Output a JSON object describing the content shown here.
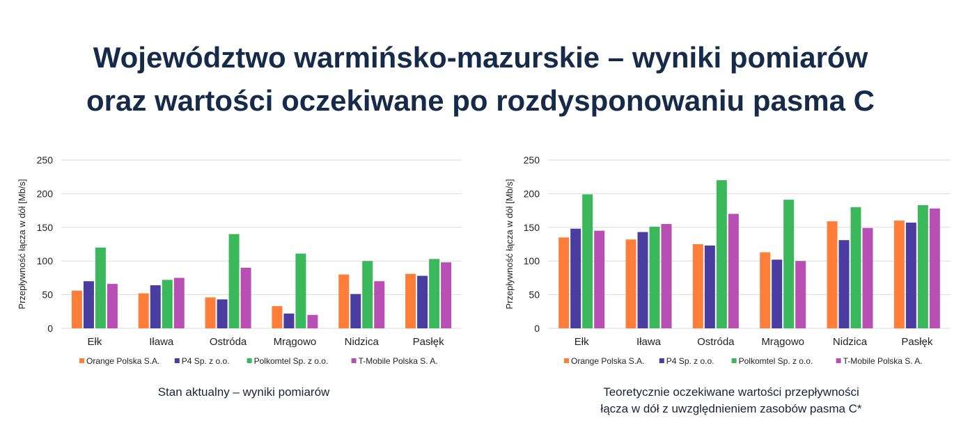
{
  "title": {
    "line1": "Województwo warmińsko-mazurskie – wyniki pomiarów",
    "line2": "oraz wartości oczekiwane po rozdysponowaniu pasma C"
  },
  "chart_data": [
    {
      "type": "bar",
      "title": "",
      "caption": [
        "Stan aktualny – wyniki pomiarów"
      ],
      "xlabel": "",
      "ylabel": "Przepływność łącza w dół [Mb/s]",
      "ylim": [
        0,
        250
      ],
      "yticks": [
        0,
        50,
        100,
        150,
        200,
        250
      ],
      "grid": true,
      "legend": "bottom",
      "categories": [
        "Ełk",
        "Iława",
        "Ostróda",
        "Mrągowo",
        "Nidzica",
        "Pasłęk"
      ],
      "series": [
        {
          "name": "Orange Polska S.A.",
          "color": "#ff7f3a",
          "values": [
            56,
            52,
            46,
            33,
            80,
            81
          ]
        },
        {
          "name": "P4 Sp. z o.o.",
          "color": "#4a3da0",
          "values": [
            70,
            64,
            43,
            22,
            51,
            78
          ]
        },
        {
          "name": "Polkomtel Sp. z o.o.",
          "color": "#3cb85c",
          "values": [
            120,
            72,
            140,
            111,
            100,
            103
          ]
        },
        {
          "name": "T-Mobile Polska S. A.",
          "color": "#b84fb2",
          "values": [
            66,
            75,
            90,
            20,
            70,
            98
          ]
        }
      ]
    },
    {
      "type": "bar",
      "title": "",
      "caption": [
        "Teoretycznie oczekiwane wartości przepływności",
        "łącza w dół z uwzględnieniem zasobów pasma C*"
      ],
      "xlabel": "",
      "ylabel": "Przepływność łącza w dół [Mb/s]",
      "ylim": [
        0,
        250
      ],
      "yticks": [
        0,
        50,
        100,
        150,
        200,
        250
      ],
      "grid": true,
      "legend": "bottom",
      "categories": [
        "Ełk",
        "Iława",
        "Ostróda",
        "Mrągowo",
        "Nidzica",
        "Pasłęk"
      ],
      "series": [
        {
          "name": "Orange Polska S.A.",
          "color": "#ff7f3a",
          "values": [
            135,
            132,
            125,
            113,
            159,
            160
          ]
        },
        {
          "name": "P4 Sp. z o.o.",
          "color": "#4a3da0",
          "values": [
            148,
            143,
            123,
            102,
            131,
            157
          ]
        },
        {
          "name": "Polkomtel Sp. z o.o.",
          "color": "#3cb85c",
          "values": [
            199,
            151,
            220,
            191,
            180,
            183
          ]
        },
        {
          "name": "T-Mobile Polska S. A.",
          "color": "#b84fb2",
          "values": [
            145,
            155,
            170,
            100,
            149,
            178
          ]
        }
      ]
    }
  ]
}
